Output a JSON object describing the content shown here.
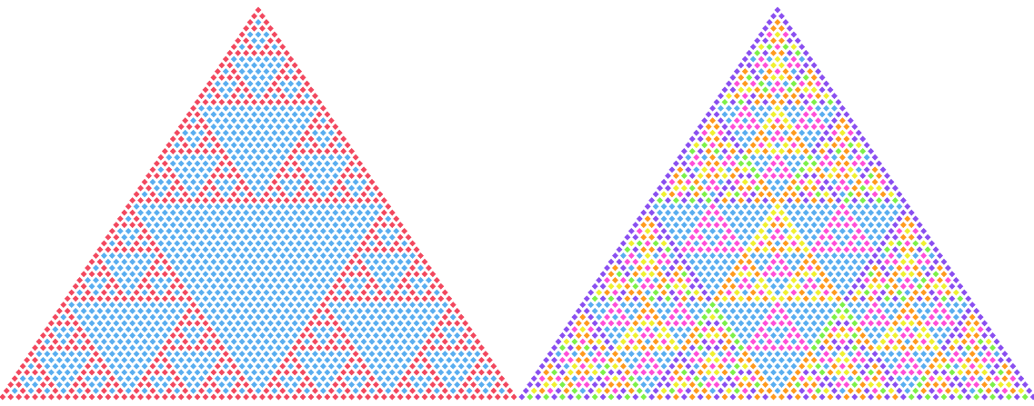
{
  "diagram": {
    "left": {
      "kind": "pascal-triangle-mod",
      "modulus": 2,
      "rows": 64,
      "zero_color": "#5aaef0",
      "residue_colors": {
        "1": "#f2485f"
      }
    },
    "right": {
      "kind": "pascal-triangle-mod",
      "modulus": 8,
      "rows": 64,
      "zero_color": "#5aaef0",
      "residue_colors": {
        "1": "#8a4ff0",
        "2": "#ff9a1e",
        "3": "#ff9a1e",
        "4": "#ff4fd8",
        "5": "#8a4ff0",
        "6": "#f0f030",
        "7": "#7df04a"
      }
    }
  }
}
